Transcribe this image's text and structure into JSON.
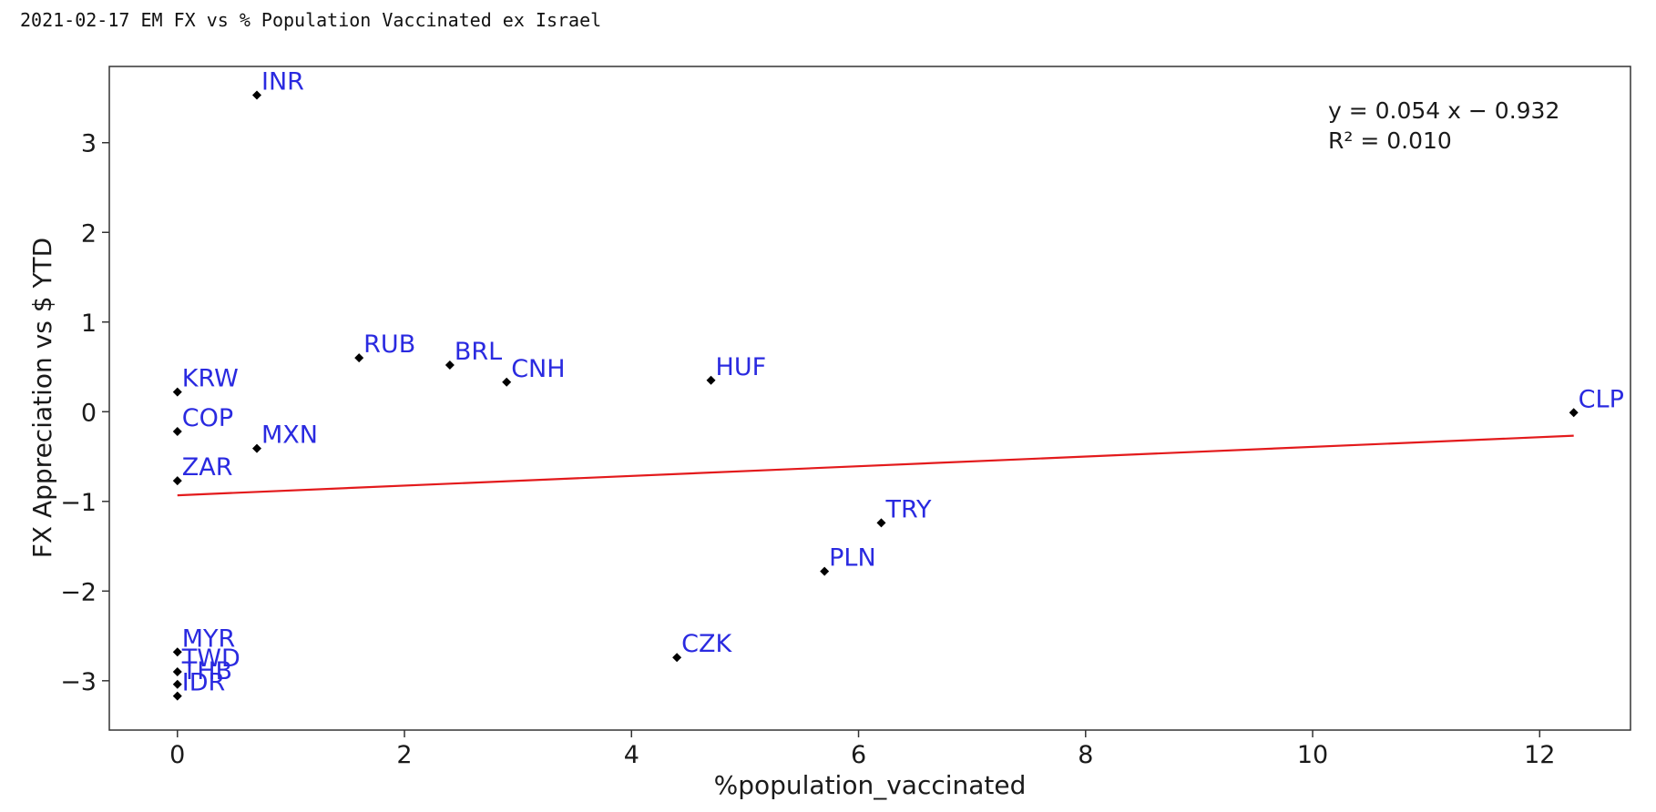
{
  "page_title": "2021-02-17 EM FX vs % Population Vaccinated ex Israel",
  "chart_data": {
    "type": "scatter",
    "xlabel": "%population_vaccinated",
    "ylabel": "FX Appreciation vs $ YTD",
    "xlim": [
      -0.6,
      12.8
    ],
    "ylim": [
      -3.55,
      3.85
    ],
    "xticks": [
      0,
      2,
      4,
      6,
      8,
      10,
      12
    ],
    "yticks": [
      -3,
      -2,
      -1,
      0,
      1,
      2,
      3
    ],
    "grid": false,
    "points": [
      {
        "label": "INR",
        "x": 0.7,
        "y": 3.53
      },
      {
        "label": "RUB",
        "x": 1.6,
        "y": 0.6
      },
      {
        "label": "BRL",
        "x": 2.4,
        "y": 0.52
      },
      {
        "label": "CNH",
        "x": 2.9,
        "y": 0.33
      },
      {
        "label": "HUF",
        "x": 4.7,
        "y": 0.35
      },
      {
        "label": "KRW",
        "x": 0.0,
        "y": 0.22
      },
      {
        "label": "CLP",
        "x": 12.3,
        "y": -0.01
      },
      {
        "label": "COP",
        "x": 0.0,
        "y": -0.22
      },
      {
        "label": "MXN",
        "x": 0.7,
        "y": -0.41
      },
      {
        "label": "ZAR",
        "x": 0.0,
        "y": -0.77
      },
      {
        "label": "TRY",
        "x": 6.2,
        "y": -1.24
      },
      {
        "label": "PLN",
        "x": 5.7,
        "y": -1.78
      },
      {
        "label": "MYR",
        "x": 0.0,
        "y": -2.68
      },
      {
        "label": "CZK",
        "x": 4.4,
        "y": -2.74
      },
      {
        "label": "TWD",
        "x": 0.0,
        "y": -2.9
      },
      {
        "label": "THB",
        "x": 0.0,
        "y": -3.04
      },
      {
        "label": "IDR",
        "x": 0.0,
        "y": -3.17
      }
    ],
    "regression": {
      "slope": 0.054,
      "intercept": -0.932,
      "x_range": [
        0.0,
        12.3
      ],
      "color": "#e31a1c",
      "equation_text": "y = 0.054 x − 0.932",
      "r2_text": "R² = 0.010"
    },
    "point_color": "#000000",
    "label_color": "#2a2ae0"
  }
}
